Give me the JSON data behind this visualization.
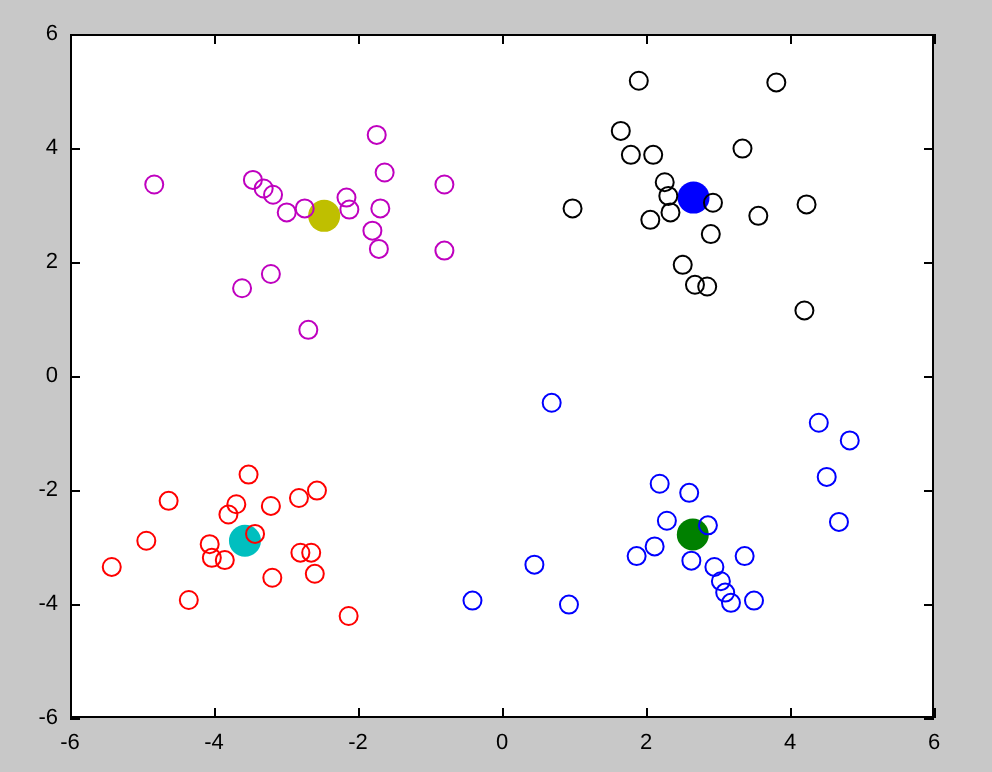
{
  "chart_data": {
    "type": "scatter",
    "xlim": [
      -6,
      6
    ],
    "ylim": [
      -6,
      6
    ],
    "xticks": [
      -6,
      -4,
      -2,
      0,
      2,
      4,
      6
    ],
    "yticks": [
      -6,
      -4,
      -2,
      0,
      2,
      4,
      6
    ],
    "grid": false,
    "legend": false,
    "marker": "circle",
    "series": [
      {
        "color": "#bf00bf",
        "x": [
          -4.83,
          -1.74,
          -1.63,
          -0.8,
          -3.46,
          -3.31,
          -3.18,
          -2.99,
          -2.74,
          -2.16,
          -2.12,
          -1.69,
          -1.8,
          -1.71,
          -0.8,
          -3.21,
          -3.61,
          -2.69
        ],
        "values": [
          3.36,
          4.23,
          3.57,
          3.36,
          3.44,
          3.29,
          3.18,
          2.87,
          2.94,
          3.13,
          2.92,
          2.94,
          2.55,
          2.23,
          2.2,
          1.79,
          1.54,
          0.81
        ]
      },
      {
        "color": "#000000",
        "x": [
          1.9,
          3.81,
          1.65,
          1.79,
          2.1,
          3.34,
          2.26,
          2.31,
          2.34,
          2.06,
          0.98,
          2.93,
          3.56,
          4.23,
          2.9,
          2.51,
          2.68,
          2.85,
          4.2
        ],
        "values": [
          5.18,
          5.15,
          4.3,
          3.88,
          3.88,
          3.99,
          3.4,
          3.16,
          2.87,
          2.74,
          2.94,
          3.04,
          2.81,
          3.01,
          2.49,
          1.95,
          1.6,
          1.57,
          1.15
        ]
      },
      {
        "color": "#ff0000",
        "x": [
          -3.52,
          -4.63,
          -3.69,
          -3.8,
          -3.21,
          -2.82,
          -2.57,
          -4.94,
          -4.06,
          -4.03,
          -3.85,
          -5.42,
          -3.43,
          -2.8,
          -2.65,
          -2.6,
          -3.19,
          -4.35,
          -2.13
        ],
        "values": [
          -1.73,
          -2.19,
          -2.25,
          -2.43,
          -2.28,
          -2.14,
          -2.01,
          -2.89,
          -2.95,
          -3.19,
          -3.23,
          -3.35,
          -2.77,
          -3.1,
          -3.1,
          -3.47,
          -3.54,
          -3.93,
          -4.21
        ]
      },
      {
        "color": "#0000ff",
        "x": [
          -0.41,
          0.69,
          4.4,
          4.83,
          4.51,
          4.68,
          2.19,
          2.6,
          2.29,
          2.86,
          2.12,
          1.87,
          2.63,
          2.95,
          3.37,
          3.04,
          3.1,
          3.18,
          3.5,
          0.45,
          0.93
        ],
        "values": [
          -3.94,
          -0.47,
          -0.82,
          -1.13,
          -1.77,
          -2.56,
          -1.89,
          -2.05,
          -2.54,
          -2.62,
          -2.99,
          -3.16,
          -3.24,
          -3.35,
          -3.16,
          -3.6,
          -3.8,
          -3.98,
          -3.94,
          -3.31,
          -4.01
        ]
      },
      {
        "type": "bubble",
        "color": "#bfbf00",
        "x": [
          -2.47
        ],
        "values": [
          2.81
        ],
        "sizes": [
          1
        ]
      },
      {
        "type": "bubble",
        "color": "#0000ff",
        "x": [
          2.66
        ],
        "values": [
          3.13
        ],
        "sizes": [
          1
        ]
      },
      {
        "type": "bubble",
        "color": "#00bfbf",
        "x": [
          -3.57
        ],
        "values": [
          -2.89
        ],
        "sizes": [
          1
        ]
      },
      {
        "type": "bubble",
        "color": "#008000",
        "x": [
          2.65
        ],
        "values": [
          -2.78
        ],
        "sizes": [
          1
        ]
      }
    ]
  }
}
